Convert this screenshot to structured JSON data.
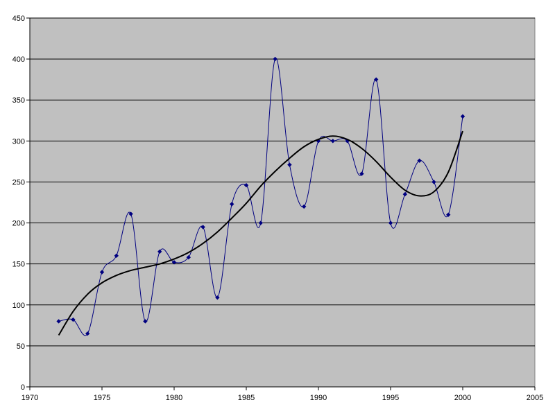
{
  "chart_data": {
    "type": "line",
    "title": "",
    "xlabel": "",
    "ylabel": "",
    "xlim": [
      1970,
      2005
    ],
    "ylim": [
      0,
      450
    ],
    "x_ticks": [
      1970,
      1975,
      1980,
      1985,
      1990,
      1995,
      2000,
      2005
    ],
    "y_ticks": [
      0,
      50,
      100,
      150,
      200,
      250,
      300,
      350,
      400,
      450
    ],
    "grid": "horizontal",
    "legend": "none",
    "plot_background": "#C0C0C0",
    "series": [
      {
        "style": "smoothed line with diamond markers",
        "color": "#000080",
        "x": [
          1972,
          1973,
          1974,
          1975,
          1976,
          1977,
          1978,
          1979,
          1980,
          1981,
          1982,
          1983,
          1984,
          1985,
          1986,
          1987,
          1988,
          1989,
          1990,
          1991,
          1992,
          1993,
          1994,
          1995,
          1996,
          1997,
          1998,
          1999,
          2000
        ],
        "y": [
          80,
          82,
          65,
          140,
          160,
          211,
          80,
          165,
          152,
          158,
          195,
          109,
          223,
          246,
          200,
          400,
          271,
          220,
          300,
          300,
          300,
          260,
          375,
          200,
          235,
          276,
          250,
          210,
          330
        ]
      },
      {
        "style": "trend curve",
        "color": "#000000",
        "x": [
          1972,
          1973,
          1974,
          1975,
          1976,
          1977,
          1978,
          1979,
          1980,
          1981,
          1982,
          1983,
          1984,
          1985,
          1986,
          1987,
          1988,
          1989,
          1990,
          1991,
          1992,
          1993,
          1994,
          1995,
          1996,
          1997,
          1998,
          1999,
          2000
        ],
        "y": [
          63,
          92,
          113,
          127,
          136,
          142,
          146,
          150,
          156,
          164,
          175,
          189,
          206,
          224,
          245,
          263,
          279,
          293,
          302,
          306,
          302,
          291,
          275,
          256,
          240,
          233,
          238,
          262,
          312
        ]
      }
    ]
  }
}
